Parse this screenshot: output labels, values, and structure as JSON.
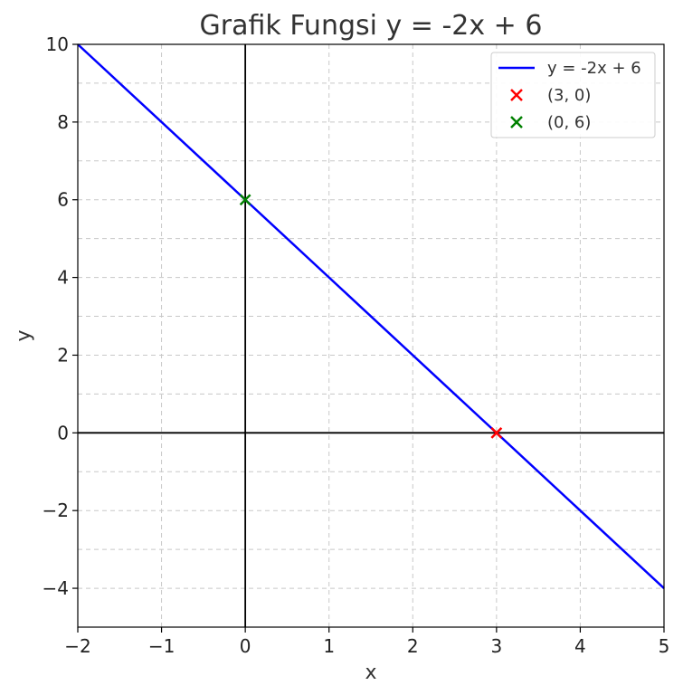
{
  "chart_data": {
    "type": "line",
    "title": "Grafik Fungsi y = -2x + 6",
    "xlabel": "x",
    "ylabel": "y",
    "xlim": [
      -2,
      5
    ],
    "ylim": [
      -5,
      10
    ],
    "xticks": [
      -2,
      -1,
      0,
      1,
      2,
      3,
      4,
      5
    ],
    "xtick_labels": [
      "−2",
      "−1",
      "0",
      "1",
      "2",
      "3",
      "4",
      "5"
    ],
    "yticks": [
      -4,
      -2,
      0,
      2,
      4,
      6,
      8,
      10
    ],
    "ytick_labels": [
      "−4",
      "−2",
      "0",
      "2",
      "4",
      "6",
      "8",
      "10"
    ],
    "grid": true,
    "legend_position": "top-right",
    "series": [
      {
        "name": "y = -2x + 6",
        "kind": "line",
        "color": "#0000ff",
        "x": [
          -2,
          5
        ],
        "y": [
          10,
          -4
        ]
      }
    ],
    "points": [
      {
        "name": "(3, 0)",
        "x": 3,
        "y": 0,
        "color": "#ff0000",
        "marker": "x"
      },
      {
        "name": "(0, 6)",
        "x": 0,
        "y": 6,
        "color": "#008000",
        "marker": "x"
      }
    ]
  }
}
